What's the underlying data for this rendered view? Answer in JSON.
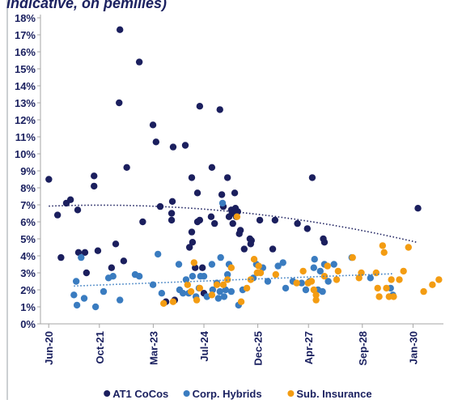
{
  "chart_data": {
    "type": "scatter",
    "title": "indicative, on pemilies)",
    "xlim": [
      2020.2,
      2030.8
    ],
    "xticks": [
      {
        "value": 2020.417,
        "label": "Jun-20"
      },
      {
        "value": 2021.75,
        "label": "Oct-21"
      },
      {
        "value": 2023.167,
        "label": "Mar-23"
      },
      {
        "value": 2024.5,
        "label": "Jul-24"
      },
      {
        "value": 2025.917,
        "label": "Dec-25"
      },
      {
        "value": 2027.25,
        "label": "Apr-27"
      },
      {
        "value": 2028.667,
        "label": "Sep-28"
      },
      {
        "value": 2030.0,
        "label": "Jan-30"
      }
    ],
    "ylim": [
      0,
      18
    ],
    "yticks": [
      {
        "value": 0,
        "label": "0%"
      },
      {
        "value": 1,
        "label": "1%"
      },
      {
        "value": 2,
        "label": "2%"
      },
      {
        "value": 3,
        "label": "3%"
      },
      {
        "value": 4,
        "label": "4%"
      },
      {
        "value": 5,
        "label": "5%"
      },
      {
        "value": 6,
        "label": "6%"
      },
      {
        "value": 7,
        "label": "7%"
      },
      {
        "value": 8,
        "label": "8%"
      },
      {
        "value": 9,
        "label": "9%"
      },
      {
        "value": 10,
        "label": "10%"
      },
      {
        "value": 11,
        "label": "11%"
      },
      {
        "value": 12,
        "label": "12%"
      },
      {
        "value": 13,
        "label": "13%"
      },
      {
        "value": 14,
        "label": "14%"
      },
      {
        "value": 15,
        "label": "15%"
      },
      {
        "value": 16,
        "label": "16%"
      },
      {
        "value": 17,
        "label": "17%"
      },
      {
        "value": 18,
        "label": "18%"
      }
    ],
    "legend": "bottom",
    "series": [
      {
        "name": "AT1 CoCos",
        "color": "#1b1f5e",
        "trendline": "quadratic",
        "x": [
          2020.42,
          2020.65,
          2020.74,
          2020.88,
          2020.99,
          2021.18,
          2021.2,
          2021.37,
          2021.41,
          2021.61,
          2021.61,
          2021.71,
          2022.07,
          2022.18,
          2022.29,
          2022.27,
          2022.39,
          2022.47,
          2022.8,
          2022.89,
          2023.16,
          2023.24,
          2023.35,
          2023.5,
          2023.65,
          2023.65,
          2023.69,
          2023.67,
          2023.73,
          2024.01,
          2024.12,
          2024.18,
          2024.18,
          2024.2,
          2024.27,
          2024.33,
          2024.33,
          2024.39,
          2024.39,
          2024.46,
          2024.5,
          2024.69,
          2024.71,
          2024.78,
          2024.92,
          2024.97,
          2025.01,
          2025.12,
          2025.16,
          2025.22,
          2025.24,
          2025.26,
          2025.31,
          2025.33,
          2025.35,
          2025.39,
          2025.43,
          2025.46,
          2025.56,
          2025.71,
          2025.73,
          2025.75,
          2025.97,
          2026.31,
          2026.37,
          2026.96,
          2027.22,
          2027.35,
          2027.64,
          2027.67,
          2030.13
        ],
        "values": [
          8.5,
          6.4,
          3.9,
          7.1,
          7.3,
          6.7,
          4.2,
          4.2,
          3.0,
          8.7,
          8.1,
          4.3,
          3.3,
          4.7,
          17.3,
          13.0,
          3.7,
          9.2,
          15.4,
          6.0,
          11.7,
          10.7,
          6.9,
          1.3,
          6.5,
          6.1,
          10.4,
          7.2,
          1.4,
          10.5,
          4.5,
          8.6,
          5.4,
          4.8,
          3.3,
          6.0,
          7.7,
          6.1,
          12.8,
          3.3,
          1.8,
          6.3,
          9.2,
          5.9,
          12.6,
          7.6,
          6.9,
          8.6,
          6.3,
          6.7,
          6.5,
          5.9,
          7.7,
          6.8,
          6.3,
          6.6,
          5.3,
          5.5,
          4.4,
          5.0,
          4.7,
          4.9,
          6.1,
          4.4,
          6.1,
          5.9,
          5.6,
          8.6,
          5.0,
          4.8,
          6.8
        ]
      },
      {
        "name": "Corp. Hybrids",
        "color": "#3a7cc0",
        "trendline": "linear",
        "x": [
          2021.14,
          2021.08,
          2021.16,
          2021.35,
          2021.27,
          2021.65,
          2021.86,
          2021.99,
          2022.11,
          2022.29,
          2022.69,
          2022.8,
          2023.16,
          2023.29,
          2023.39,
          2023.84,
          2023.86,
          2023.95,
          2024.03,
          2024.1,
          2024.2,
          2024.29,
          2024.37,
          2024.41,
          2024.5,
          2024.58,
          2024.71,
          2024.73,
          2024.84,
          2024.88,
          2024.92,
          2024.94,
          2024.99,
          2025.03,
          2025.07,
          2025.12,
          2025.16,
          2025.22,
          2025.41,
          2025.52,
          2025.8,
          2025.88,
          2026.05,
          2026.18,
          2026.45,
          2026.58,
          2026.65,
          2026.84,
          2027.07,
          2027.18,
          2027.28,
          2027.39,
          2027.41,
          2027.5,
          2027.56,
          2027.62,
          2027.67,
          2027.77,
          2027.92,
          2028.39,
          2028.88,
          2029.41,
          2029.47
        ],
        "values": [
          2.5,
          1.7,
          1.1,
          1.5,
          3.9,
          1.0,
          1.9,
          2.7,
          2.8,
          1.4,
          2.9,
          2.8,
          2.3,
          4.1,
          1.8,
          3.5,
          2.0,
          1.8,
          2.6,
          1.8,
          2.8,
          1.6,
          2.1,
          2.8,
          2.8,
          1.6,
          3.5,
          2.0,
          2.4,
          1.5,
          1.9,
          3.9,
          7.1,
          1.6,
          2.0,
          2.9,
          3.5,
          1.9,
          1.1,
          2.0,
          2.7,
          3.5,
          3.3,
          2.5,
          3.4,
          3.6,
          2.1,
          2.5,
          2.4,
          2.0,
          2.5,
          3.3,
          3.8,
          2.0,
          3.1,
          1.9,
          3.5,
          2.5,
          3.5,
          3.9,
          2.7,
          2.1,
          1.7
        ]
      },
      {
        "name": "Sub. Insurance",
        "color": "#f39c12",
        "x": [
          2023.44,
          2023.69,
          2024.07,
          2024.16,
          2024.24,
          2024.31,
          2024.39,
          2024.71,
          2024.84,
          2025.01,
          2025.12,
          2025.22,
          2025.37,
          2025.48,
          2025.63,
          2025.73,
          2025.82,
          2025.9,
          2025.94,
          2025.99,
          2026.39,
          2026.94,
          2027.11,
          2027.24,
          2027.33,
          2027.39,
          2027.45,
          2027.45,
          2027.67,
          2027.75,
          2027.99,
          2028.03,
          2028.41,
          2028.58,
          2028.64,
          2029.03,
          2029.07,
          2029.11,
          2029.2,
          2029.24,
          2029.3,
          2029.37,
          2029.43,
          2029.49,
          2029.64,
          2029.75,
          2029.88,
          2030.28,
          2030.51,
          2030.68
        ],
        "values": [
          1.2,
          1.3,
          2.3,
          1.9,
          3.6,
          1.4,
          2.1,
          1.7,
          2.3,
          2.3,
          2.6,
          3.3,
          6.3,
          1.3,
          2.1,
          2.6,
          3.8,
          3.0,
          3.4,
          3.0,
          2.9,
          2.4,
          3.1,
          2.4,
          2.5,
          2.0,
          1.4,
          1.7,
          2.8,
          3.4,
          2.6,
          3.1,
          3.9,
          2.7,
          3.0,
          3.0,
          2.1,
          1.6,
          4.6,
          4.2,
          2.1,
          1.6,
          2.6,
          1.6,
          2.6,
          3.1,
          4.5,
          1.9,
          2.3,
          2.6
        ]
      }
    ]
  }
}
